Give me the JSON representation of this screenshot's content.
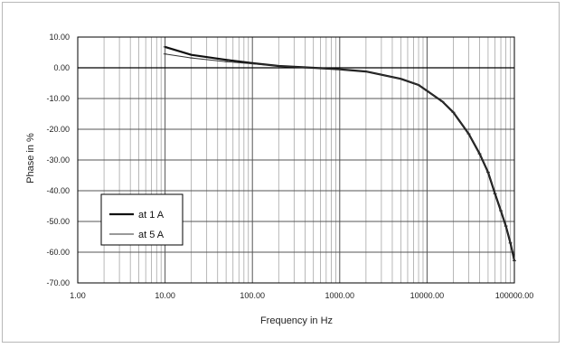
{
  "chart_data": {
    "type": "line",
    "title": "",
    "xlabel": "Frequency in Hz",
    "ylabel": "Phase in %",
    "x_scale": "log",
    "xlim": [
      1,
      100000
    ],
    "ylim": [
      -70,
      10
    ],
    "x_ticks": [
      1,
      10,
      100,
      1000,
      10000,
      100000
    ],
    "x_tick_labels": [
      "1.00",
      "10.00",
      "100.00",
      "1000.00",
      "10000.00",
      "100000.00"
    ],
    "y_ticks": [
      10,
      0,
      -10,
      -20,
      -30,
      -40,
      -50,
      -60,
      -70
    ],
    "y_tick_labels": [
      "10.00",
      "0.00",
      "-10.00",
      "-20.00",
      "-30.00",
      "-40.00",
      "-50.00",
      "-60.00",
      "-70.00"
    ],
    "grid": true,
    "legend_position": "lower-left",
    "series": [
      {
        "name": "at 1 A",
        "color": "#111111",
        "x": [
          10,
          20,
          50,
          100,
          200,
          500,
          1000,
          2000,
          5000,
          8000,
          10000,
          15000,
          20000,
          30000,
          40000,
          50000,
          60000,
          70000,
          80000,
          90000,
          100000
        ],
        "y": [
          6.8,
          4.2,
          2.6,
          1.5,
          0.6,
          0.0,
          -0.5,
          -1.2,
          -3.6,
          -5.6,
          -7.5,
          -11.0,
          -14.5,
          -21.5,
          -28.0,
          -34.0,
          -41.0,
          -46.5,
          -51.5,
          -57.0,
          -62.8
        ]
      },
      {
        "name": "at 5 A",
        "color": "#333333",
        "x": [
          10,
          20,
          50,
          100,
          200,
          500,
          1000,
          2000,
          5000,
          8000,
          10000,
          15000,
          20000,
          30000,
          40000,
          50000,
          60000,
          70000,
          80000,
          90000,
          100000
        ],
        "y": [
          4.5,
          3.2,
          2.0,
          1.3,
          0.6,
          0.0,
          -0.5,
          -1.2,
          -3.6,
          -5.6,
          -7.5,
          -11.0,
          -14.5,
          -21.5,
          -28.0,
          -34.0,
          -41.0,
          -46.5,
          -51.5,
          -57.0,
          -62.8
        ]
      }
    ]
  }
}
